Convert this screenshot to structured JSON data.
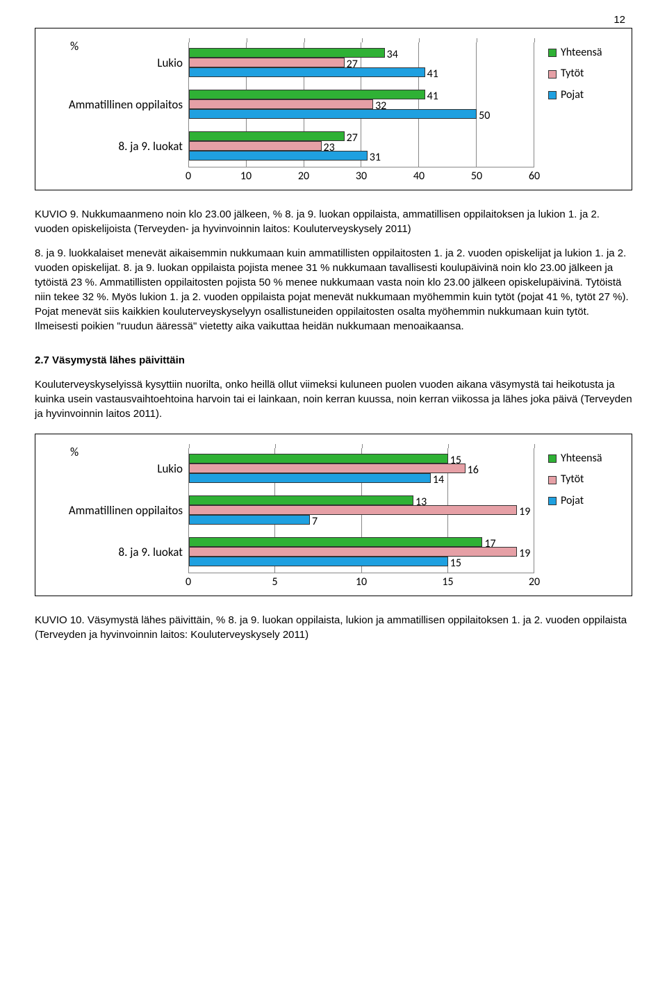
{
  "page_number": "12",
  "chart1": {
    "percent_symbol": "%",
    "categories": [
      "Lukio",
      "Ammatillinen oppilaitos",
      "8. ja 9. luokat"
    ],
    "series": [
      {
        "name": "Yhteensä",
        "color": "#2fb135"
      },
      {
        "name": "Tytöt",
        "color": "#e6a0a6"
      },
      {
        "name": "Pojat",
        "color": "#1fa0e0"
      }
    ],
    "values": [
      [
        34,
        27,
        41
      ],
      [
        41,
        32,
        50
      ],
      [
        27,
        23,
        31
      ]
    ],
    "xmax": 60,
    "xtick_step": 10,
    "xticks": [
      "0",
      "10",
      "20",
      "30",
      "40",
      "50",
      "60"
    ],
    "bar_border": "#333333",
    "grid_color": "#888888"
  },
  "caption1": "KUVIO 9. Nukkumaanmeno noin klo 23.00 jälkeen, % 8. ja 9. luokan oppilaista, ammatillisen oppilaitoksen ja lukion 1. ja 2. vuoden opiskelijoista (Terveyden- ja hyvinvoinnin laitos: Kouluterveyskysely 2011)",
  "body1": "8. ja 9. luokkalaiset menevät aikaisemmin nukkumaan kuin ammatillisten oppilaitosten 1. ja 2. vuoden opiskelijat ja lukion 1. ja 2. vuoden opiskelijat. 8. ja 9. luokan oppilaista pojista menee 31 % nukkumaan tavallisesti koulupäivinä noin klo 23.00 jälkeen ja tytöistä 23 %. Ammatillisten oppilaitosten pojista 50 % menee nukkumaan vasta noin klo 23.00 jälkeen opiskelupäivinä. Tytöistä niin tekee 32 %. Myös lukion 1. ja 2. vuoden oppilaista pojat menevät nukkumaan myöhemmin kuin tytöt (pojat 41 %, tytöt 27 %).\nPojat menevät siis kaikkien kouluterveyskyselyyn osallistuneiden oppilaitosten osalta myöhemmin nukkumaan kuin tytöt. Ilmeisesti poikien \"ruudun ääressä\" vietetty aika vaikuttaa heidän nukkumaan menoaikaansa.",
  "section_heading": "2.7 Väsymystä lähes päivittäin",
  "body2": "Kouluterveyskyselyissä kysyttiin nuorilta, onko heillä ollut viimeksi kuluneen puolen vuoden aikana väsymystä tai heikotusta ja kuinka usein vastausvaihtoehtoina harvoin tai ei lainkaan, noin kerran kuussa, noin kerran viikossa ja lähes joka päivä (Terveyden ja hyvinvoinnin laitos 2011).",
  "chart2": {
    "percent_symbol": "%",
    "categories": [
      "Lukio",
      "Ammatillinen oppilaitos",
      "8. ja 9. luokat"
    ],
    "series": [
      {
        "name": "Yhteensä",
        "color": "#2fb135"
      },
      {
        "name": "Tytöt",
        "color": "#e6a0a6"
      },
      {
        "name": "Pojat",
        "color": "#1fa0e0"
      }
    ],
    "values": [
      [
        15,
        16,
        14
      ],
      [
        13,
        19,
        7
      ],
      [
        17,
        19,
        15
      ]
    ],
    "xmax": 20,
    "xtick_step": 5,
    "xticks": [
      "0",
      "5",
      "10",
      "15",
      "20"
    ],
    "bar_border": "#333333",
    "grid_color": "#888888"
  },
  "caption2": "KUVIO 10. Väsymystä lähes päivittäin, % 8. ja 9. luokan oppilaista, lukion ja ammatillisen oppilaitoksen 1. ja 2. vuoden oppilaista (Terveyden ja hyvinvoinnin laitos: Kouluterveyskysely 2011)"
}
